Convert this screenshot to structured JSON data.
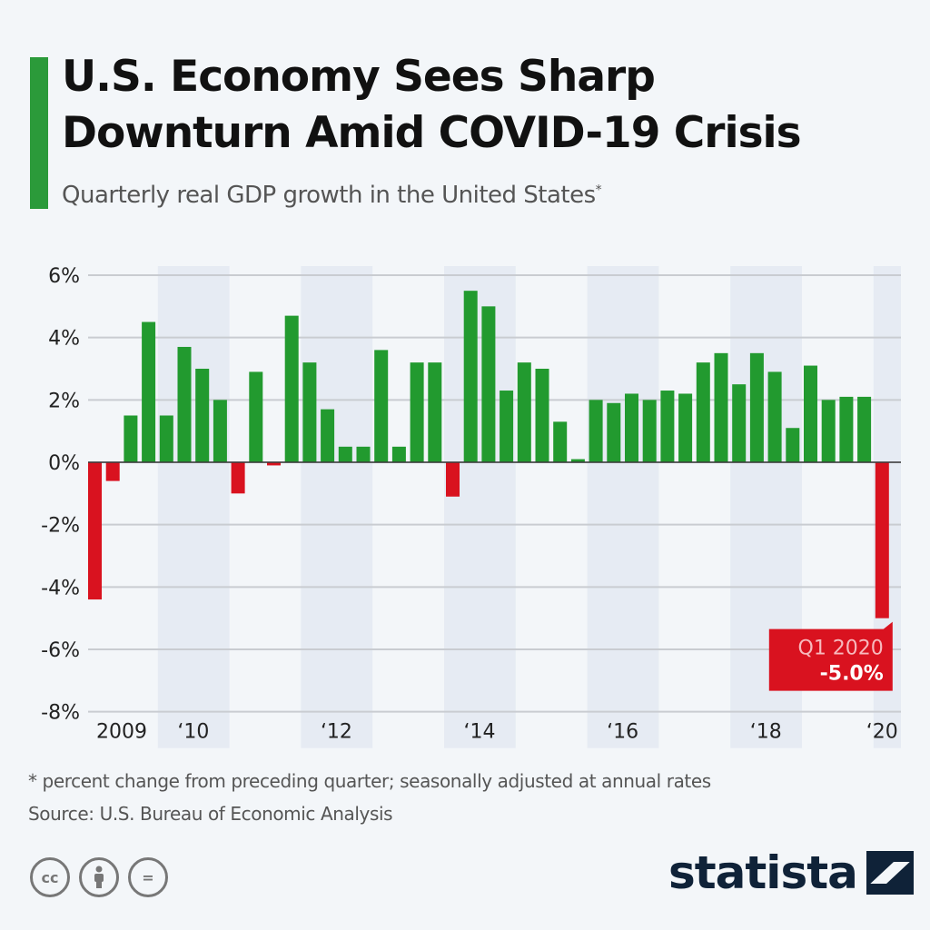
{
  "header": {
    "title_line1": "U.S. Economy Sees Sharp",
    "title_line2": "Downturn Amid COVID-19 Crisis",
    "subtitle": "Quarterly real GDP growth in the United States",
    "subtitle_mark": "*"
  },
  "colors": {
    "accent": "#2b9a3a",
    "positive": "#229a2f",
    "negative": "#d9121f",
    "band": "#e6ebf3",
    "brand": "#0f2238"
  },
  "chart_data": {
    "type": "bar",
    "title": "U.S. Economy Sees Sharp Downturn Amid COVID-19 Crisis",
    "subtitle": "Quarterly real GDP growth in the United States*",
    "xlabel": "",
    "ylabel": "",
    "ylim": [
      -8,
      6
    ],
    "yticks": [
      6,
      4,
      2,
      0,
      -2,
      -4,
      -6,
      -8
    ],
    "ytick_labels": [
      "6%",
      "4%",
      "2%",
      "0%",
      "-2%",
      "-4%",
      "-6%",
      "-8%"
    ],
    "grid": true,
    "categories": [
      "Q1 2009",
      "Q2 2009",
      "Q3 2009",
      "Q4 2009",
      "Q1 2010",
      "Q2 2010",
      "Q3 2010",
      "Q4 2010",
      "Q1 2011",
      "Q2 2011",
      "Q3 2011",
      "Q4 2011",
      "Q1 2012",
      "Q2 2012",
      "Q3 2012",
      "Q4 2012",
      "Q1 2013",
      "Q2 2013",
      "Q3 2013",
      "Q4 2013",
      "Q1 2014",
      "Q2 2014",
      "Q3 2014",
      "Q4 2014",
      "Q1 2015",
      "Q2 2015",
      "Q3 2015",
      "Q4 2015",
      "Q1 2016",
      "Q2 2016",
      "Q3 2016",
      "Q4 2016",
      "Q1 2017",
      "Q2 2017",
      "Q3 2017",
      "Q4 2017",
      "Q1 2018",
      "Q2 2018",
      "Q3 2018",
      "Q4 2018",
      "Q1 2019",
      "Q2 2019",
      "Q3 2019",
      "Q4 2019",
      "Q1 2020"
    ],
    "values": [
      -4.4,
      -0.6,
      1.5,
      4.5,
      1.5,
      3.7,
      3.0,
      2.0,
      -1.0,
      2.9,
      -0.1,
      4.7,
      3.2,
      1.7,
      0.5,
      0.5,
      3.6,
      0.5,
      3.2,
      3.2,
      -1.1,
      5.5,
      5.0,
      2.3,
      3.2,
      3.0,
      1.3,
      0.1,
      2.0,
      1.9,
      2.2,
      2.0,
      2.3,
      2.2,
      3.2,
      3.5,
      2.5,
      3.5,
      2.9,
      1.1,
      3.1,
      2.0,
      2.1,
      2.1,
      -5.0
    ],
    "x_tick_labels": [
      {
        "label": "2009",
        "index": 1.5
      },
      {
        "label": "‘10",
        "index": 5.5
      },
      {
        "label": "‘12",
        "index": 13.5
      },
      {
        "label": "‘14",
        "index": 21.5
      },
      {
        "label": "‘16",
        "index": 29.5
      },
      {
        "label": "‘18",
        "index": 37.5
      },
      {
        "label": "‘20",
        "index": 44
      }
    ],
    "shaded_years": [
      "2010",
      "2012",
      "2014",
      "2016",
      "2018",
      "2020"
    ],
    "annotation": {
      "label": "Q1 2020",
      "value": "-5.0%",
      "target": "Q1 2020"
    }
  },
  "footer": {
    "footnote": "* percent change from preceding quarter; seasonally adjusted at annual rates",
    "source": "Source: U.S. Bureau of Economic Analysis",
    "license_icons": [
      "cc-icon",
      "attribution-icon",
      "no-derivatives-icon"
    ],
    "license_glyphs": [
      "cc",
      "i",
      "="
    ],
    "brand": "statista"
  }
}
